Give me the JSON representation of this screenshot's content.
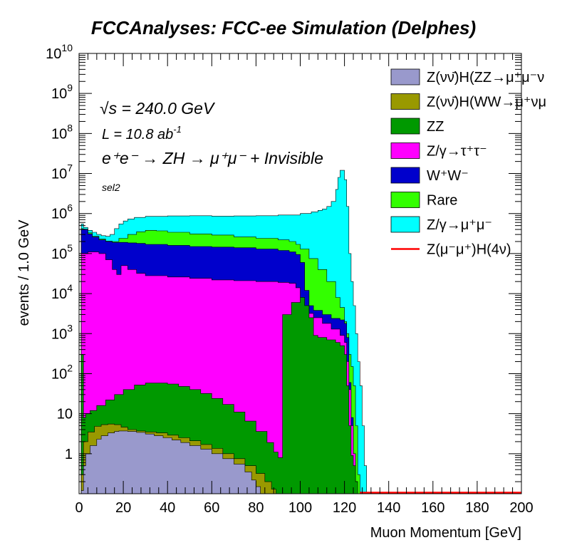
{
  "chart_data": {
    "type": "area",
    "stacked": true,
    "title": "FCCAnalyses: FCC-ee Simulation (Delphes)",
    "xlabel": "Muon Momentum [GeV]",
    "ylabel": "events / 1.0 GeV",
    "xlim": [
      0,
      200
    ],
    "ylim": [
      0.1,
      10000000000
    ],
    "yscale": "log",
    "x_ticks": [
      "0",
      "20",
      "40",
      "60",
      "80",
      "100",
      "120",
      "140",
      "160",
      "180",
      "200"
    ],
    "y_ticks": [
      {
        "value": 1,
        "label": "1"
      },
      {
        "value": 10,
        "label": "10"
      },
      {
        "value": 100,
        "base": "10",
        "exp": "2"
      },
      {
        "value": 1000,
        "base": "10",
        "exp": "3"
      },
      {
        "value": 10000,
        "base": "10",
        "exp": "4"
      },
      {
        "value": 100000,
        "base": "10",
        "exp": "5"
      },
      {
        "value": 1000000,
        "base": "10",
        "exp": "6"
      },
      {
        "value": 10000000,
        "base": "10",
        "exp": "7"
      },
      {
        "value": 100000000,
        "base": "10",
        "exp": "8"
      },
      {
        "value": 1000000000,
        "base": "10",
        "exp": "9"
      },
      {
        "value": 10000000000,
        "base": "10",
        "exp": "10"
      }
    ],
    "annotations": {
      "sqrt_s": "√s = 240.0 GeV",
      "lumi": "L = 10.8 ab",
      "lumi_sup": "-1",
      "process": "e⁺e⁻ → ZH → μ⁺μ⁻ + Invisible",
      "selection": "sel2"
    },
    "legend_position": "top-right",
    "series_order_bottom_to_top": [
      "Z(νν̄)H(ZZ→μ⁺μ⁻ν⁺ν⁻)",
      "Z(νν̄)H(WW→μ⁺νμ⁻ν)",
      "ZZ",
      "Z/γ→τ⁺τ⁻",
      "W⁺W⁻",
      "Rare",
      "Z/γ→μ⁺μ⁻"
    ],
    "series": [
      {
        "name": "Z(νν̄)H(ZZ→μ⁺μ⁻ν⁺ν⁻)",
        "legend_label": "Z(νν̄)H(ZZ→μ⁺μ⁻ν",
        "color": "#9999cc",
        "cumulative_top": [
          [
            0,
            0.1
          ],
          [
            1,
            0.12
          ],
          [
            2,
            0.5
          ],
          [
            3,
            1
          ],
          [
            5,
            1.6
          ],
          [
            8,
            2.3
          ],
          [
            10,
            2.8
          ],
          [
            13,
            3.3
          ],
          [
            16,
            3.6
          ],
          [
            18,
            3.7
          ],
          [
            22,
            3.6
          ],
          [
            26,
            3.4
          ],
          [
            30,
            3.1
          ],
          [
            34,
            2.8
          ],
          [
            38,
            2.5
          ],
          [
            42,
            2.2
          ],
          [
            46,
            1.9
          ],
          [
            50,
            1.6
          ],
          [
            55,
            1.3
          ],
          [
            60,
            1.0
          ],
          [
            65,
            0.75
          ],
          [
            70,
            0.55
          ],
          [
            75,
            0.35
          ],
          [
            78,
            0.22
          ],
          [
            80,
            0.15
          ],
          [
            82,
            0.1
          ]
        ]
      },
      {
        "name": "Z(νν̄)H(WW→μ⁺νμ⁻ν)",
        "legend_label": "Z(νν̄)H(WW→μ⁺νμ",
        "color": "#999900",
        "cumulative_top": [
          [
            0,
            0.1
          ],
          [
            1,
            0.3
          ],
          [
            2,
            2
          ],
          [
            4,
            3.5
          ],
          [
            7,
            4.8
          ],
          [
            10,
            5.3
          ],
          [
            13,
            5.5
          ],
          [
            16,
            5.3
          ],
          [
            19,
            4.6
          ],
          [
            22,
            4.0
          ],
          [
            26,
            3.7
          ],
          [
            30,
            3.5
          ],
          [
            35,
            3.3
          ],
          [
            40,
            2.9
          ],
          [
            45,
            2.5
          ],
          [
            50,
            2.1
          ],
          [
            55,
            1.7
          ],
          [
            60,
            1.35
          ],
          [
            65,
            1.0
          ],
          [
            70,
            0.75
          ],
          [
            75,
            0.5
          ],
          [
            80,
            0.32
          ],
          [
            84,
            0.2
          ],
          [
            87,
            0.13
          ],
          [
            89,
            0.1
          ]
        ]
      },
      {
        "name": "ZZ",
        "legend_label": "ZZ",
        "color": "#009900",
        "cumulative_top": [
          [
            0,
            0.1
          ],
          [
            1,
            300
          ],
          [
            2,
            8
          ],
          [
            3,
            10
          ],
          [
            5,
            12
          ],
          [
            8,
            16
          ],
          [
            12,
            22
          ],
          [
            16,
            30
          ],
          [
            20,
            40
          ],
          [
            25,
            52
          ],
          [
            30,
            58
          ],
          [
            35,
            58
          ],
          [
            40,
            55
          ],
          [
            45,
            48
          ],
          [
            50,
            40
          ],
          [
            55,
            32
          ],
          [
            60,
            24
          ],
          [
            65,
            17
          ],
          [
            70,
            11
          ],
          [
            75,
            6.5
          ],
          [
            80,
            3.6
          ],
          [
            85,
            1.9
          ],
          [
            88,
            1.1
          ],
          [
            90,
            0.8
          ],
          [
            92,
            3000
          ],
          [
            96,
            6000
          ],
          [
            100,
            8000
          ],
          [
            102,
            5000
          ],
          [
            104,
            2500
          ],
          [
            106,
            900
          ],
          [
            108,
            800
          ],
          [
            112,
            700
          ],
          [
            116,
            600
          ],
          [
            118,
            500
          ],
          [
            120,
            300
          ],
          [
            121,
            50
          ],
          [
            122,
            5
          ],
          [
            123,
            0.9
          ],
          [
            124,
            0.5
          ],
          [
            125,
            0.2
          ],
          [
            126,
            0.1
          ]
        ]
      },
      {
        "name": "Z/γ→τ⁺τ⁻",
        "legend_label": "Z/γ→τ⁺τ⁻",
        "color": "#ff00ff",
        "cumulative_top": [
          [
            0,
            0.1
          ],
          [
            1,
            100000
          ],
          [
            2,
            100000
          ],
          [
            4,
            110000
          ],
          [
            6,
            110000
          ],
          [
            9,
            100000
          ],
          [
            12,
            70000
          ],
          [
            15,
            40000
          ],
          [
            17,
            30000
          ],
          [
            19,
            50000
          ],
          [
            22,
            40000
          ],
          [
            26,
            32000
          ],
          [
            30,
            28000
          ],
          [
            40,
            26000
          ],
          [
            50,
            24000
          ],
          [
            60,
            22000
          ],
          [
            70,
            21000
          ],
          [
            80,
            20000
          ],
          [
            90,
            19000
          ],
          [
            95,
            18000
          ],
          [
            98,
            14000
          ],
          [
            100,
            8000
          ],
          [
            102,
            5000
          ],
          [
            104,
            3200
          ],
          [
            106,
            2500
          ],
          [
            110,
            1800
          ],
          [
            114,
            1300
          ],
          [
            118,
            900
          ],
          [
            120,
            600
          ],
          [
            121,
            200
          ],
          [
            122,
            40
          ],
          [
            123,
            5
          ],
          [
            124,
            1
          ],
          [
            125,
            0.2
          ],
          [
            126,
            0.1
          ]
        ]
      },
      {
        "name": "W⁺W⁻",
        "legend_label": "W⁺W⁻",
        "color": "#0000cc",
        "cumulative_top": [
          [
            0,
            0.1
          ],
          [
            1,
            400000
          ],
          [
            2,
            400000
          ],
          [
            4,
            310000
          ],
          [
            6,
            260000
          ],
          [
            9,
            220000
          ],
          [
            12,
            200000
          ],
          [
            15,
            190000
          ],
          [
            18,
            190000
          ],
          [
            22,
            185000
          ],
          [
            26,
            180000
          ],
          [
            30,
            170000
          ],
          [
            40,
            160000
          ],
          [
            50,
            150000
          ],
          [
            60,
            145000
          ],
          [
            70,
            140000
          ],
          [
            80,
            130000
          ],
          [
            90,
            120000
          ],
          [
            95,
            110000
          ],
          [
            98,
            95000
          ],
          [
            100,
            60000
          ],
          [
            102,
            12000
          ],
          [
            104,
            5000
          ],
          [
            106,
            3800
          ],
          [
            110,
            3000
          ],
          [
            114,
            2400
          ],
          [
            118,
            2200
          ],
          [
            120,
            1800
          ],
          [
            121,
            800
          ],
          [
            122,
            60
          ],
          [
            123,
            8
          ],
          [
            124,
            1
          ],
          [
            125,
            0.2
          ],
          [
            126,
            0.1
          ]
        ]
      },
      {
        "name": "Rare",
        "legend_label": "Rare",
        "color": "#33ff00",
        "cumulative_top": [
          [
            0,
            0.1
          ],
          [
            1,
            420000
          ],
          [
            2,
            410000
          ],
          [
            4,
            330000
          ],
          [
            6,
            270000
          ],
          [
            9,
            230000
          ],
          [
            12,
            205000
          ],
          [
            15,
            200000
          ],
          [
            18,
            240000
          ],
          [
            22,
            300000
          ],
          [
            26,
            350000
          ],
          [
            30,
            380000
          ],
          [
            35,
            370000
          ],
          [
            40,
            340000
          ],
          [
            50,
            310000
          ],
          [
            60,
            290000
          ],
          [
            70,
            260000
          ],
          [
            80,
            240000
          ],
          [
            90,
            220000
          ],
          [
            95,
            200000
          ],
          [
            98,
            170000
          ],
          [
            100,
            130000
          ],
          [
            104,
            75000
          ],
          [
            108,
            40000
          ],
          [
            112,
            20000
          ],
          [
            116,
            8000
          ],
          [
            118,
            4500
          ],
          [
            120,
            2000
          ],
          [
            121,
            1000
          ],
          [
            122,
            300
          ],
          [
            123,
            150
          ],
          [
            124,
            50
          ],
          [
            125,
            5
          ],
          [
            126,
            0.3
          ],
          [
            127,
            0.1
          ]
        ]
      },
      {
        "name": "Z/γ→μ⁺μ⁻",
        "legend_label": "Z/γ→μ⁺μ⁻",
        "color": "#00ffff",
        "cumulative_top": [
          [
            0,
            0.1
          ],
          [
            1,
            550000
          ],
          [
            2,
            450000
          ],
          [
            4,
            380000
          ],
          [
            6,
            340000
          ],
          [
            8,
            300000
          ],
          [
            10,
            280000
          ],
          [
            12,
            270000
          ],
          [
            14,
            300000
          ],
          [
            16,
            420000
          ],
          [
            18,
            550000
          ],
          [
            20,
            650000
          ],
          [
            22,
            730000
          ],
          [
            25,
            800000
          ],
          [
            30,
            850000
          ],
          [
            40,
            870000
          ],
          [
            50,
            880000
          ],
          [
            60,
            860000
          ],
          [
            70,
            870000
          ],
          [
            80,
            880000
          ],
          [
            90,
            920000
          ],
          [
            100,
            1000000
          ],
          [
            105,
            1100000
          ],
          [
            108,
            1200000
          ],
          [
            110,
            1300000
          ],
          [
            112,
            1500000
          ],
          [
            114,
            2000000
          ],
          [
            116,
            4000000
          ],
          [
            117,
            8000000
          ],
          [
            118,
            12000000
          ],
          [
            119,
            12000000
          ],
          [
            120,
            7000000
          ],
          [
            121,
            1500000
          ],
          [
            122,
            100000
          ],
          [
            123,
            20000
          ],
          [
            124,
            5000
          ],
          [
            125,
            1000
          ],
          [
            126,
            200
          ],
          [
            127,
            50
          ],
          [
            128,
            5
          ],
          [
            129,
            0.5
          ],
          [
            130,
            0.1
          ]
        ]
      },
      {
        "name": "Z(μ⁻μ⁺)H(4ν)",
        "legend_label": "Z(μ⁻μ⁺)H(4ν)",
        "color": "#ff0000",
        "type": "line",
        "note": "drawn as a red line near the bottom edge across the full range"
      }
    ]
  }
}
